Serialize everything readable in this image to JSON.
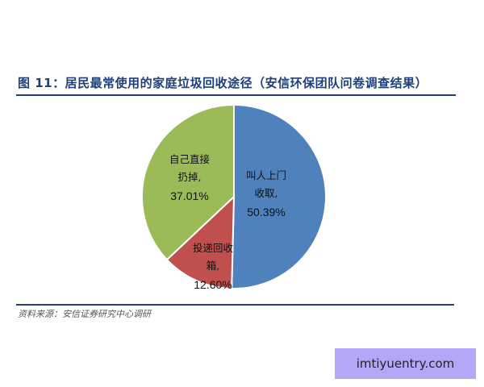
{
  "title": "图 11：居民最常使用的家庭垃圾回收途径（安信环保团队问卷调查结果）",
  "source": "资料来源：安信证券研究中心调研",
  "watermark": "imtiyuentry.com",
  "chart_data": {
    "type": "pie",
    "start": "top",
    "direction": "clockwise",
    "slices": [
      {
        "label_lines": [
          "叫人上门",
          "收取,"
        ],
        "value": 50.39,
        "value_label": "50.39%",
        "color": "#4f81bd"
      },
      {
        "label_lines": [
          "投递回收",
          "箱,"
        ],
        "value": 12.6,
        "value_label": "12.60%",
        "color": "#c0504d"
      },
      {
        "label_lines": [
          "自己直接",
          "扔掉,"
        ],
        "value": 37.01,
        "value_label": "37.01%",
        "color": "#9bbb59"
      }
    ]
  }
}
